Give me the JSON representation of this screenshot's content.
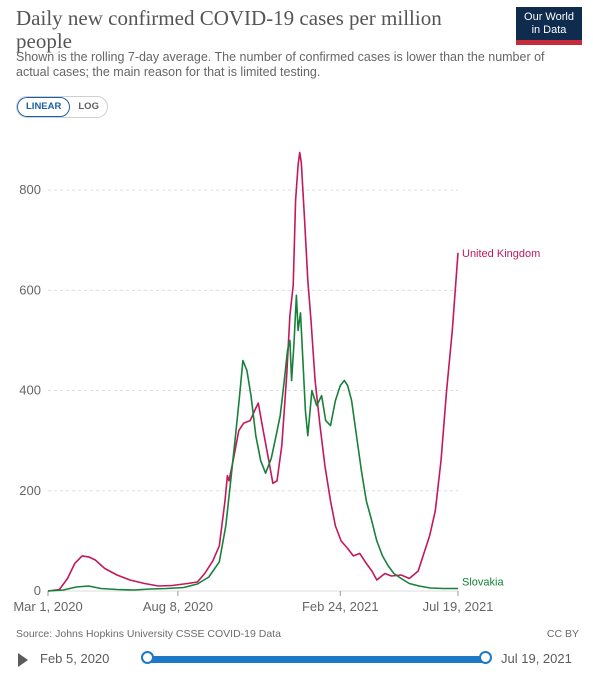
{
  "header": {
    "title": "Daily new confirmed COVID-19 cases per million people",
    "subtitle": "Shown is the rolling 7-day average. The number of confirmed cases is lower than the number of actual cases; the main reason for that is limited testing.",
    "logo_line1": "Our World",
    "logo_line2": "in Data"
  },
  "scale_toggle": {
    "linear": "LINEAR",
    "log": "LOG",
    "selected": "LINEAR"
  },
  "footer": {
    "source": "Source: Johns Hopkins University CSSE COVID-19 Data",
    "license": "CC BY"
  },
  "timeline": {
    "start_label": "Feb 5, 2020",
    "end_label": "Jul 19, 2021"
  },
  "colors": {
    "uk": "#c3185c",
    "sk": "#18803a",
    "grid": "#dddddd",
    "axis_text": "#666666"
  },
  "chart_data": {
    "type": "line",
    "title": "Daily new confirmed COVID-19 cases per million people",
    "x_ticks": [
      "Mar 1, 2020",
      "Aug 8, 2020",
      "Feb 24, 2021",
      "Jul 19, 2021"
    ],
    "y_ticks": [
      "0",
      "200",
      "400",
      "600",
      "800"
    ],
    "ylim": [
      0,
      900
    ],
    "xlim": [
      "2020-03-01",
      "2021-07-19"
    ],
    "grid": "horizontal dashed",
    "legend": "inline labels at line ends",
    "series": [
      {
        "name": "United Kingdom",
        "points": [
          [
            "2020-03-01",
            0
          ],
          [
            "2020-03-15",
            3
          ],
          [
            "2020-03-25",
            25
          ],
          [
            "2020-04-03",
            55
          ],
          [
            "2020-04-12",
            70
          ],
          [
            "2020-04-20",
            68
          ],
          [
            "2020-04-28",
            62
          ],
          [
            "2020-05-10",
            45
          ],
          [
            "2020-05-25",
            32
          ],
          [
            "2020-06-10",
            22
          ],
          [
            "2020-06-28",
            15
          ],
          [
            "2020-07-15",
            10
          ],
          [
            "2020-08-01",
            11
          ],
          [
            "2020-08-20",
            15
          ],
          [
            "2020-09-01",
            18
          ],
          [
            "2020-09-10",
            35
          ],
          [
            "2020-09-20",
            60
          ],
          [
            "2020-09-28",
            90
          ],
          [
            "2020-10-05",
            180
          ],
          [
            "2020-10-08",
            230
          ],
          [
            "2020-10-10",
            220
          ],
          [
            "2020-10-15",
            260
          ],
          [
            "2020-10-22",
            320
          ],
          [
            "2020-10-28",
            335
          ],
          [
            "2020-11-05",
            340
          ],
          [
            "2020-11-12",
            365
          ],
          [
            "2020-11-15",
            375
          ],
          [
            "2020-11-20",
            330
          ],
          [
            "2020-11-28",
            260
          ],
          [
            "2020-12-03",
            215
          ],
          [
            "2020-12-08",
            220
          ],
          [
            "2020-12-14",
            290
          ],
          [
            "2020-12-20",
            430
          ],
          [
            "2020-12-24",
            550
          ],
          [
            "2020-12-28",
            610
          ],
          [
            "2020-12-31",
            780
          ],
          [
            "2021-01-03",
            850
          ],
          [
            "2021-01-05",
            875
          ],
          [
            "2021-01-07",
            855
          ],
          [
            "2021-01-11",
            740
          ],
          [
            "2021-01-15",
            620
          ],
          [
            "2021-01-19",
            540
          ],
          [
            "2021-01-24",
            420
          ],
          [
            "2021-01-30",
            330
          ],
          [
            "2021-02-05",
            250
          ],
          [
            "2021-02-12",
            180
          ],
          [
            "2021-02-18",
            130
          ],
          [
            "2021-02-25",
            100
          ],
          [
            "2021-03-05",
            85
          ],
          [
            "2021-03-12",
            70
          ],
          [
            "2021-03-20",
            75
          ],
          [
            "2021-03-28",
            55
          ],
          [
            "2021-04-04",
            40
          ],
          [
            "2021-04-10",
            22
          ],
          [
            "2021-04-20",
            35
          ],
          [
            "2021-04-28",
            30
          ],
          [
            "2021-05-10",
            32
          ],
          [
            "2021-05-20",
            25
          ],
          [
            "2021-05-31",
            40
          ],
          [
            "2021-06-07",
            75
          ],
          [
            "2021-06-14",
            110
          ],
          [
            "2021-06-21",
            160
          ],
          [
            "2021-06-28",
            260
          ],
          [
            "2021-07-05",
            400
          ],
          [
            "2021-07-12",
            520
          ],
          [
            "2021-07-19",
            675
          ]
        ]
      },
      {
        "name": "Slovakia",
        "points": [
          [
            "2020-03-01",
            0
          ],
          [
            "2020-03-20",
            2
          ],
          [
            "2020-04-05",
            8
          ],
          [
            "2020-04-20",
            10
          ],
          [
            "2020-05-05",
            5
          ],
          [
            "2020-05-25",
            3
          ],
          [
            "2020-06-15",
            2
          ],
          [
            "2020-07-05",
            4
          ],
          [
            "2020-07-25",
            5
          ],
          [
            "2020-08-15",
            7
          ],
          [
            "2020-09-01",
            14
          ],
          [
            "2020-09-15",
            28
          ],
          [
            "2020-09-28",
            58
          ],
          [
            "2020-10-06",
            130
          ],
          [
            "2020-10-12",
            220
          ],
          [
            "2020-10-18",
            310
          ],
          [
            "2020-10-23",
            390
          ],
          [
            "2020-10-27",
            460
          ],
          [
            "2020-11-01",
            440
          ],
          [
            "2020-11-06",
            390
          ],
          [
            "2020-11-12",
            310
          ],
          [
            "2020-11-18",
            260
          ],
          [
            "2020-11-24",
            235
          ],
          [
            "2020-12-01",
            265
          ],
          [
            "2020-12-07",
            310
          ],
          [
            "2020-12-12",
            350
          ],
          [
            "2020-12-17",
            420
          ],
          [
            "2020-12-21",
            480
          ],
          [
            "2020-12-24",
            500
          ],
          [
            "2020-12-26",
            420
          ],
          [
            "2020-12-29",
            495
          ],
          [
            "2021-01-01",
            590
          ],
          [
            "2021-01-03",
            520
          ],
          [
            "2021-01-06",
            555
          ],
          [
            "2021-01-09",
            460
          ],
          [
            "2021-01-12",
            360
          ],
          [
            "2021-01-15",
            310
          ],
          [
            "2021-01-20",
            400
          ],
          [
            "2021-01-26",
            370
          ],
          [
            "2021-02-01",
            390
          ],
          [
            "2021-02-06",
            340
          ],
          [
            "2021-02-12",
            330
          ],
          [
            "2021-02-18",
            380
          ],
          [
            "2021-02-24",
            410
          ],
          [
            "2021-03-01",
            420
          ],
          [
            "2021-03-05",
            410
          ],
          [
            "2021-03-10",
            380
          ],
          [
            "2021-03-16",
            310
          ],
          [
            "2021-03-22",
            240
          ],
          [
            "2021-03-28",
            180
          ],
          [
            "2021-04-03",
            145
          ],
          [
            "2021-04-10",
            100
          ],
          [
            "2021-04-17",
            70
          ],
          [
            "2021-04-24",
            50
          ],
          [
            "2021-05-01",
            35
          ],
          [
            "2021-05-10",
            25
          ],
          [
            "2021-05-20",
            15
          ],
          [
            "2021-06-01",
            10
          ],
          [
            "2021-06-15",
            6
          ],
          [
            "2021-07-01",
            5
          ],
          [
            "2021-07-19",
            5
          ]
        ]
      }
    ]
  }
}
